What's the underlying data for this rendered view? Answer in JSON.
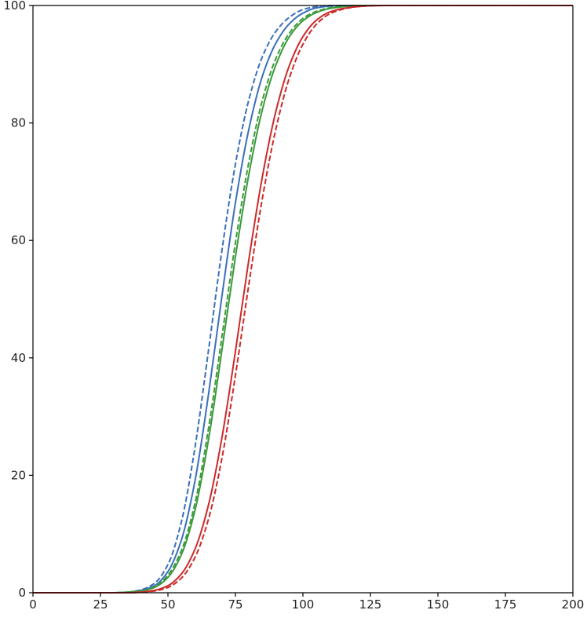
{
  "chart_data": {
    "type": "line",
    "title": "",
    "xlabel": "",
    "ylabel": "",
    "xlim": [
      0,
      200
    ],
    "ylim": [
      0,
      100
    ],
    "xticks": [
      0,
      25,
      50,
      75,
      100,
      125,
      150,
      175,
      200
    ],
    "yticks": [
      0,
      20,
      40,
      60,
      80,
      100
    ],
    "grid": false,
    "legend": "none",
    "x": [
      0,
      10,
      20,
      30,
      35,
      40,
      45,
      50,
      55,
      60,
      65,
      70,
      75,
      80,
      85,
      90,
      95,
      100,
      105,
      110,
      115,
      120,
      125,
      130,
      135,
      140,
      150,
      175,
      200
    ],
    "series": [
      {
        "color": "#3a6fba",
        "dash": "dashed",
        "values": [
          0,
          0,
          0,
          0,
          0.1,
          0.5,
          1.6,
          4.8,
          12.1,
          24.7,
          41.2,
          58.3,
          73.0,
          84.0,
          91.3,
          95.6,
          98.0,
          99.3,
          99.8,
          100,
          100,
          100,
          100,
          100,
          100,
          100,
          100,
          100,
          100
        ]
      },
      {
        "color": "#3a6fba",
        "dash": "solid",
        "values": [
          0,
          0,
          0,
          0,
          0.1,
          0.4,
          1.2,
          3.6,
          9.0,
          19.0,
          33.7,
          50.5,
          66.4,
          79.0,
          88.0,
          93.6,
          96.9,
          98.7,
          99.6,
          99.9,
          100,
          100,
          100,
          100,
          100,
          100,
          100,
          100,
          100
        ]
      },
      {
        "color": "#3a9a3a",
        "dash": "dashed",
        "values": [
          0,
          0,
          0,
          0,
          0.1,
          0.3,
          1.0,
          3.0,
          7.2,
          15.2,
          27.9,
          43.6,
          59.6,
          73.4,
          83.9,
          91.0,
          95.3,
          97.8,
          99.0,
          99.6,
          99.9,
          100,
          100,
          100,
          100,
          100,
          100,
          100,
          100
        ]
      },
      {
        "color": "#3a9a3a",
        "dash": "solid",
        "values": [
          0,
          0,
          0,
          0,
          0.1,
          0.3,
          0.9,
          2.6,
          6.5,
          14.0,
          26.0,
          41.3,
          57.2,
          71.3,
          82.3,
          89.9,
          94.7,
          97.4,
          98.8,
          99.5,
          99.8,
          100,
          100,
          100,
          100,
          100,
          100,
          100,
          100
        ]
      },
      {
        "color": "#cc2a2a",
        "dash": "solid",
        "values": [
          0,
          0,
          0,
          0,
          0,
          0.1,
          0.4,
          1.2,
          3.2,
          7.4,
          14.9,
          26.4,
          41.1,
          56.8,
          70.9,
          82.0,
          89.8,
          94.7,
          97.5,
          98.9,
          99.5,
          99.8,
          99.95,
          100,
          100,
          100,
          100,
          100,
          100
        ]
      },
      {
        "color": "#cc2a2a",
        "dash": "dashed",
        "values": [
          0,
          0,
          0,
          0,
          0,
          0.1,
          0.3,
          0.9,
          2.5,
          6.0,
          12.5,
          22.9,
          37.0,
          52.6,
          67.2,
          79.0,
          87.7,
          93.4,
          96.8,
          98.6,
          99.4,
          99.8,
          99.95,
          100,
          100,
          100,
          100,
          100,
          100
        ]
      }
    ]
  }
}
